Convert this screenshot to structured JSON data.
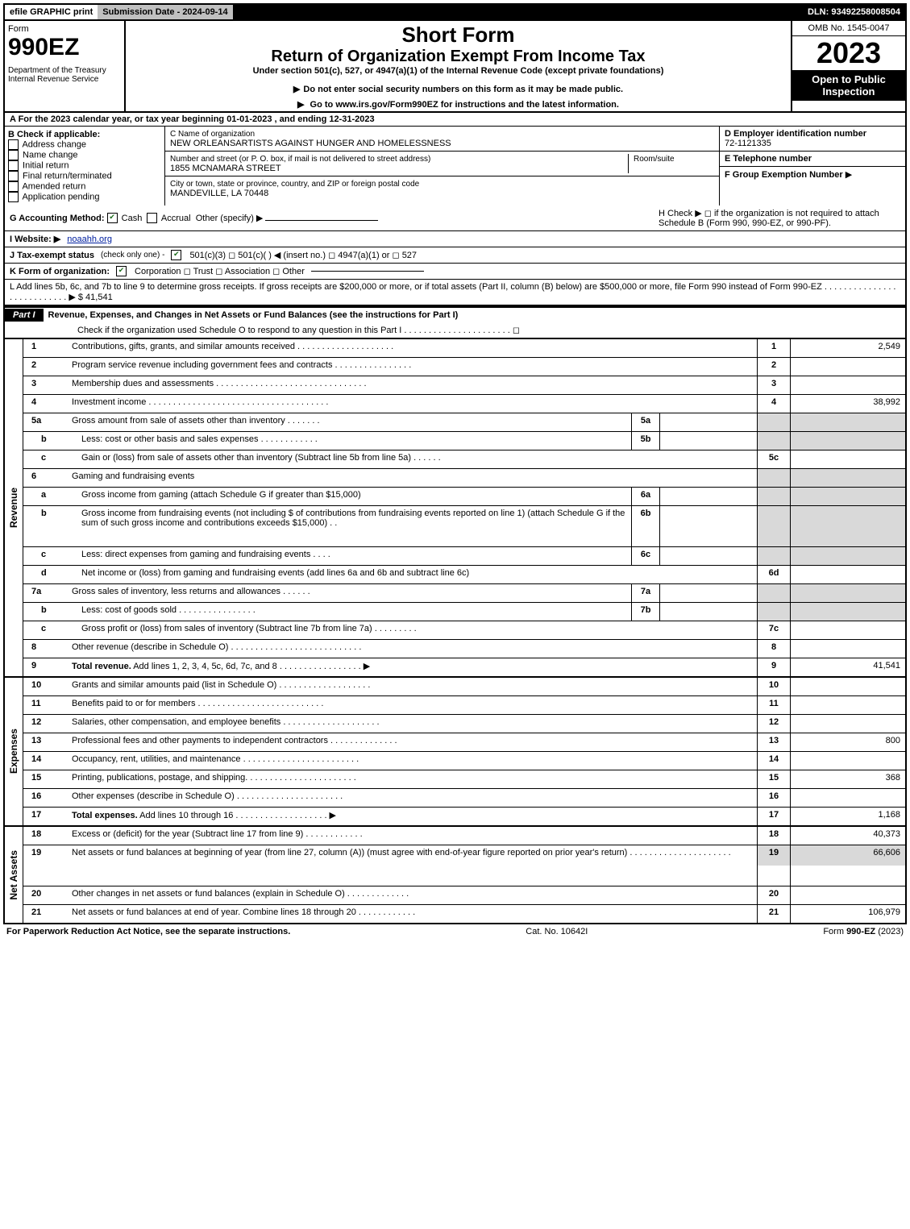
{
  "topbar": {
    "efile": "efile GRAPHIC print",
    "submission": "Submission Date - 2024-09-14",
    "dln": "DLN: 93492258008504"
  },
  "header": {
    "form_prefix": "Form",
    "form_number": "990EZ",
    "dept": "Department of the Treasury\nInternal Revenue Service",
    "title_short": "Short Form",
    "title_long": "Return of Organization Exempt From Income Tax",
    "under": "Under section 501(c), 527, or 4947(a)(1) of the Internal Revenue Code (except private foundations)",
    "note1": "Do not enter social security numbers on this form as it may be made public.",
    "note2": "Go to www.irs.gov/Form990EZ for instructions and the latest information.",
    "omb": "OMB No. 1545-0047",
    "year": "2023",
    "open": "Open to Public Inspection"
  },
  "A": "A  For the 2023 calendar year, or tax year beginning 01-01-2023 , and ending 12-31-2023",
  "B": {
    "heading": "B  Check if applicable:",
    "opts": [
      "Address change",
      "Name change",
      "Initial return",
      "Final return/terminated",
      "Amended return",
      "Application pending"
    ]
  },
  "C": {
    "name_label": "C Name of organization",
    "name": "NEW ORLEANSARTISTS AGAINST HUNGER AND HOMELESSNESS",
    "street_label": "Number and street (or P. O. box, if mail is not delivered to street address)",
    "room_label": "Room/suite",
    "street": "1855 MCNAMARA STREET",
    "city_label": "City or town, state or province, country, and ZIP or foreign postal code",
    "city": "MANDEVILLE, LA  70448"
  },
  "D": {
    "label": "D Employer identification number",
    "value": "72-1121335"
  },
  "E": {
    "label": "E Telephone number",
    "value": ""
  },
  "F": {
    "label": "F Group Exemption Number",
    "arrow": "▶"
  },
  "G": {
    "label": "G Accounting Method:",
    "cash": "Cash",
    "accrual": "Accrual",
    "other": "Other (specify) ▶"
  },
  "H": "H  Check ▶  ◻  if the organization is not required to attach Schedule B (Form 990, 990-EZ, or 990-PF).",
  "I": {
    "label": "I Website: ▶",
    "value": "noaahh.org"
  },
  "J": {
    "label": "J Tax-exempt status",
    "note": "(check only one) -",
    "opts": "501(c)(3)  ◻ 501(c)(  ) ◀ (insert no.)  ◻ 4947(a)(1) or  ◻ 527"
  },
  "K": {
    "label": "K Form of organization:",
    "opts": "Corporation   ◻ Trust   ◻ Association   ◻ Other"
  },
  "L": {
    "text": "L Add lines 5b, 6c, and 7b to line 9 to determine gross receipts. If gross receipts are $200,000 or more, or if total assets (Part II, column (B) below) are $500,000 or more, file Form 990 instead of Form 990-EZ  .  .  .  .  .  .  .  .  .  .  .  .  .  .  .  .  .  .  .  .  .  .  .  .  .  .  .   ▶",
    "amount": "$ 41,541"
  },
  "part1": {
    "label": "Part I",
    "title": "Revenue, Expenses, and Changes in Net Assets or Fund Balances (see the instructions for Part I)",
    "check_text": "Check if the organization used Schedule O to respond to any question in this Part I  .  .  .  .  .  .  .  .  .  .  .  .  .  .  .  .  .  .  .  .  .  .  ◻"
  },
  "vlabels": {
    "rev": "Revenue",
    "exp": "Expenses",
    "net": "Net Assets"
  },
  "rev": [
    {
      "n": "1",
      "d": "Contributions, gifts, grants, and similar amounts received  .  .  .  .  .  .  .  .  .  .  .  .  .  .  .  .  .  .  .  .",
      "r": "1",
      "v": "2,549"
    },
    {
      "n": "2",
      "d": "Program service revenue including government fees and contracts  .  .  .  .  .  .  .  .  .  .  .  .  .  .  .  .",
      "r": "2",
      "v": ""
    },
    {
      "n": "3",
      "d": "Membership dues and assessments  .  .  .  .  .  .  .  .  .  .  .  .  .  .  .  .  .  .  .  .  .  .  .  .  .  .  .  .  .  .  .",
      "r": "3",
      "v": ""
    },
    {
      "n": "4",
      "d": "Investment income  .  .  .  .  .  .  .  .  .  .  .  .  .  .  .  .  .  .  .  .  .  .  .  .  .  .  .  .  .  .  .  .  .  .  .  .  .",
      "r": "4",
      "v": "38,992"
    },
    {
      "n": "5a",
      "d": "Gross amount from sale of assets other than inventory  .  .  .  .  .  .  .",
      "mc": "5a",
      "shade": true
    },
    {
      "n": "b",
      "sub": true,
      "d": "Less: cost or other basis and sales expenses  .  .  .  .  .  .  .  .  .  .  .  .",
      "mc": "5b",
      "shade": true
    },
    {
      "n": "c",
      "sub": true,
      "d": "Gain or (loss) from sale of assets other than inventory (Subtract line 5b from line 5a)  .  .  .  .  .  .",
      "r": "5c",
      "v": ""
    },
    {
      "n": "6",
      "d": "Gaming and fundraising events",
      "shade": true,
      "noright": true
    },
    {
      "n": "a",
      "sub": true,
      "d": "Gross income from gaming (attach Schedule G if greater than $15,000)",
      "mc": "6a",
      "shade": true
    },
    {
      "n": "b",
      "sub": true,
      "d": "Gross income from fundraising events (not including $                        of contributions from fundraising events reported on line 1) (attach Schedule G if the sum of such gross income and contributions exceeds $15,000)   .   .",
      "mc": "6b",
      "shade": true,
      "tall": true
    },
    {
      "n": "c",
      "sub": true,
      "d": "Less: direct expenses from gaming and fundraising events   .  .  .  .",
      "mc": "6c",
      "shade": true
    },
    {
      "n": "d",
      "sub": true,
      "d": "Net income or (loss) from gaming and fundraising events (add lines 6a and 6b and subtract line 6c)",
      "r": "6d",
      "v": ""
    },
    {
      "n": "7a",
      "d": "Gross sales of inventory, less returns and allowances  .  .  .  .  .  .",
      "mc": "7a",
      "shade": true
    },
    {
      "n": "b",
      "sub": true,
      "d": "Less: cost of goods sold          .  .  .  .  .  .  .  .  .  .  .  .  .  .  .  .",
      "mc": "7b",
      "shade": true
    },
    {
      "n": "c",
      "sub": true,
      "d": "Gross profit or (loss) from sales of inventory (Subtract line 7b from line 7a)  .  .  .  .  .  .  .  .  .",
      "r": "7c",
      "v": ""
    },
    {
      "n": "8",
      "d": "Other revenue (describe in Schedule O)  .  .  .  .  .  .  .  .  .  .  .  .  .  .  .  .  .  .  .  .  .  .  .  .  .  .  .",
      "r": "8",
      "v": ""
    },
    {
      "n": "9",
      "d": "Total revenue. Add lines 1, 2, 3, 4, 5c, 6d, 7c, and 8   .  .  .  .  .  .  .  .  .  .  .  .  .  .  .  .  .   ▶",
      "r": "9",
      "v": "41,541",
      "bold": true
    }
  ],
  "exp": [
    {
      "n": "10",
      "d": "Grants and similar amounts paid (list in Schedule O)  .  .  .  .  .  .  .  .  .  .  .  .  .  .  .  .  .  .  .",
      "r": "10",
      "v": ""
    },
    {
      "n": "11",
      "d": "Benefits paid to or for members       .  .  .  .  .  .  .  .  .  .  .  .  .  .  .  .  .  .  .  .  .  .  .  .  .  .",
      "r": "11",
      "v": ""
    },
    {
      "n": "12",
      "d": "Salaries, other compensation, and employee benefits .  .  .  .  .  .  .  .  .  .  .  .  .  .  .  .  .  .  .  .",
      "r": "12",
      "v": ""
    },
    {
      "n": "13",
      "d": "Professional fees and other payments to independent contractors  .  .  .  .  .  .  .  .  .  .  .  .  .  .",
      "r": "13",
      "v": "800"
    },
    {
      "n": "14",
      "d": "Occupancy, rent, utilities, and maintenance .  .  .  .  .  .  .  .  .  .  .  .  .  .  .  .  .  .  .  .  .  .  .  .",
      "r": "14",
      "v": ""
    },
    {
      "n": "15",
      "d": "Printing, publications, postage, and shipping.  .  .  .  .  .  .  .  .  .  .  .  .  .  .  .  .  .  .  .  .  .  .",
      "r": "15",
      "v": "368"
    },
    {
      "n": "16",
      "d": "Other expenses (describe in Schedule O)       .  .  .  .  .  .  .  .  .  .  .  .  .  .  .  .  .  .  .  .  .  .",
      "r": "16",
      "v": ""
    },
    {
      "n": "17",
      "d": "Total expenses. Add lines 10 through 16       .  .  .  .  .  .  .  .  .  .  .  .  .  .  .  .  .  .  .   ▶",
      "r": "17",
      "v": "1,168",
      "bold": true
    }
  ],
  "net": [
    {
      "n": "18",
      "d": "Excess or (deficit) for the year (Subtract line 17 from line 9)         .  .  .  .  .  .  .  .  .  .  .  .",
      "r": "18",
      "v": "40,373"
    },
    {
      "n": "19",
      "d": "Net assets or fund balances at beginning of year (from line 27, column (A)) (must agree with end-of-year figure reported on prior year's return) .  .  .  .  .  .  .  .  .  .  .  .  .  .  .  .  .  .  .  .  .",
      "r": "19",
      "v": "66,606",
      "tall": true,
      "shadetop": true
    },
    {
      "n": "20",
      "d": "Other changes in net assets or fund balances (explain in Schedule O) .  .  .  .  .  .  .  .  .  .  .  .  .",
      "r": "20",
      "v": ""
    },
    {
      "n": "21",
      "d": "Net assets or fund balances at end of year. Combine lines 18 through 20 .  .  .  .  .  .  .  .  .  .  .  .",
      "r": "21",
      "v": "106,979"
    }
  ],
  "footer": {
    "left": "For Paperwork Reduction Act Notice, see the separate instructions.",
    "mid": "Cat. No. 10642I",
    "right": "Form 990-EZ (2023)"
  }
}
